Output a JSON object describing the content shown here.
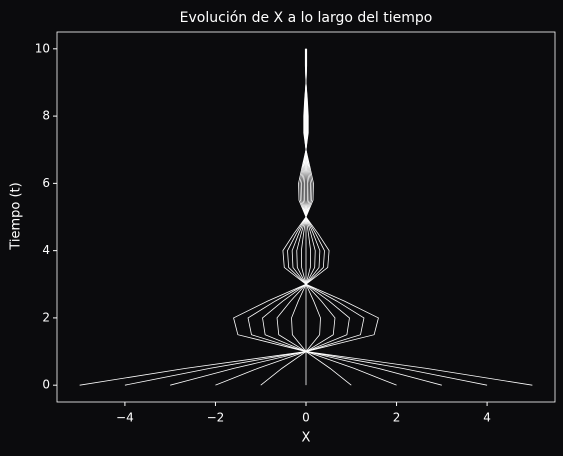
{
  "chart_data": {
    "type": "line",
    "title": "Evolución de X a lo largo del tiempo",
    "x_label": "X",
    "y_label": "Tiempo (t)",
    "color": "#ffffff",
    "xlim": [
      -5.5,
      5.5
    ],
    "xticks": [
      {
        "value": -4,
        "label": "−4"
      },
      {
        "value": -2,
        "label": "−2"
      },
      0,
      2,
      4
    ],
    "ylim": [
      -0.5,
      10.5
    ],
    "yticks": [
      0,
      2,
      4,
      6,
      8,
      10
    ],
    "y": [
      0,
      0.5,
      1,
      1.5,
      2,
      2.5,
      3,
      3.5,
      4,
      4.5,
      5,
      5.5,
      6,
      6.5,
      7,
      7.5,
      8,
      8.5,
      9,
      9.5,
      10
    ],
    "series": [
      {
        "x": [
          5,
          2.66,
          0,
          -1.505,
          -1.6,
          -0.85,
          0,
          0.48,
          0.51,
          0.27,
          0,
          -0.155,
          -0.165,
          -0.085,
          0,
          0.05,
          0.05,
          0.03,
          0,
          -0.015,
          -0.015
        ]
      },
      {
        "x": [
          4,
          2.128,
          0,
          -1.204,
          -1.28,
          -0.68,
          0,
          0.384,
          0.408,
          0.216,
          0,
          -0.124,
          -0.132,
          -0.068,
          0,
          0.04,
          0.04,
          0.024,
          0,
          -0.012,
          -0.012
        ]
      },
      {
        "x": [
          3,
          1.596,
          0,
          -0.903,
          -0.96,
          -0.51,
          0,
          0.288,
          0.306,
          0.162,
          0,
          -0.093,
          -0.099,
          -0.051,
          0,
          0.03,
          0.03,
          0.018,
          0,
          -0.009,
          -0.009
        ]
      },
      {
        "x": [
          2,
          1.064,
          0,
          -0.602,
          -0.64,
          -0.34,
          0,
          0.192,
          0.204,
          0.108,
          0,
          -0.062,
          -0.066,
          -0.034,
          0,
          0.02,
          0.02,
          0.012,
          0,
          -0.006,
          -0.006
        ]
      },
      {
        "x": [
          1,
          0.532,
          0,
          -0.301,
          -0.32,
          -0.17,
          0,
          0.096,
          0.102,
          0.054,
          0,
          -0.031,
          -0.033,
          -0.017,
          0,
          0.01,
          0.01,
          0.006,
          0,
          -0.003,
          -0.003
        ]
      },
      {
        "x": [
          0,
          0,
          0,
          0,
          0,
          0,
          0,
          0,
          0,
          0,
          0,
          0,
          0,
          0,
          0,
          0,
          0,
          0,
          0,
          0,
          0
        ]
      },
      {
        "x": [
          -1,
          -0.532,
          0,
          0.301,
          0.32,
          0.17,
          0,
          -0.096,
          -0.102,
          -0.054,
          0,
          0.031,
          0.033,
          0.017,
          0,
          -0.01,
          -0.01,
          -0.006,
          0,
          0.003,
          0.003
        ]
      },
      {
        "x": [
          -2,
          -1.064,
          0,
          0.602,
          0.64,
          0.34,
          0,
          -0.192,
          -0.204,
          -0.108,
          0,
          0.062,
          0.066,
          0.034,
          0,
          -0.02,
          -0.02,
          -0.012,
          0,
          0.006,
          0.006
        ]
      },
      {
        "x": [
          -3,
          -1.596,
          0,
          0.903,
          0.96,
          0.51,
          0,
          -0.288,
          -0.306,
          -0.162,
          0,
          0.093,
          0.099,
          0.051,
          0,
          -0.03,
          -0.03,
          -0.018,
          0,
          0.009,
          0.009
        ]
      },
      {
        "x": [
          -4,
          -2.128,
          0,
          1.204,
          1.28,
          0.68,
          0,
          -0.384,
          -0.408,
          -0.216,
          0,
          0.124,
          0.132,
          0.068,
          0,
          -0.04,
          -0.04,
          -0.024,
          0,
          0.012,
          0.012
        ]
      },
      {
        "x": [
          -5,
          -2.66,
          0,
          1.505,
          1.6,
          0.85,
          0,
          -0.48,
          -0.51,
          -0.27,
          0,
          0.155,
          0.165,
          0.085,
          0,
          -0.05,
          -0.05,
          -0.03,
          0,
          0.015,
          0.015
        ]
      }
    ]
  }
}
